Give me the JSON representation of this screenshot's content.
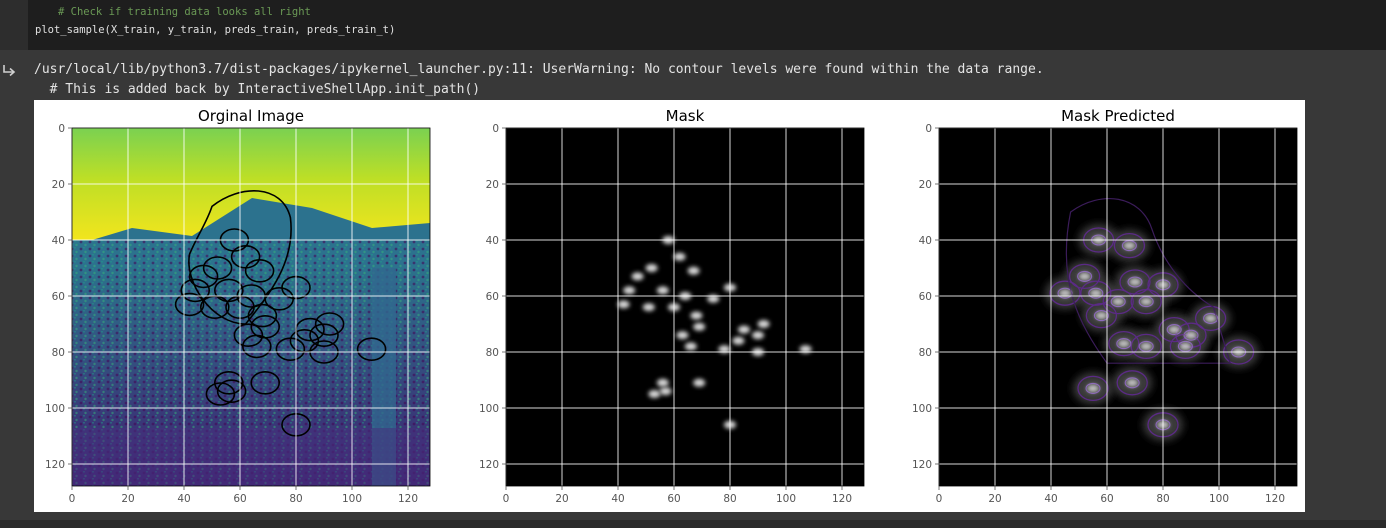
{
  "code_cell": {
    "lines": [
      "# Check if training data looks all right",
      "plot_sample(X_train, y_train, preds_train, preds_train_t)"
    ]
  },
  "output": {
    "icon": "output-arrow-icon",
    "lines": [
      "/usr/local/lib/python3.7/dist-packages/ipykernel_launcher.py:11: UserWarning: No contour levels were found within the data range.",
      "  # This is added back by InteractiveShellApp.init_path()"
    ]
  },
  "chart_data": [
    {
      "type": "heatmap",
      "title": "Orginal Image",
      "colormap": "viridis",
      "overlay": "black contour lines of the mask",
      "xlim": [
        0,
        127
      ],
      "ylim": [
        127,
        0
      ],
      "xticks": [
        0,
        20,
        40,
        60,
        80,
        100,
        120
      ],
      "yticks": [
        0,
        20,
        40,
        60,
        80,
        100,
        120
      ],
      "grid": true
    },
    {
      "type": "heatmap",
      "title": "Mask",
      "colormap": "gray",
      "xlim": [
        0,
        127
      ],
      "ylim": [
        127,
        0
      ],
      "xticks": [
        0,
        20,
        40,
        60,
        80,
        100,
        120
      ],
      "yticks": [
        0,
        20,
        40,
        60,
        80,
        100,
        120
      ],
      "grid": true,
      "blobs": [
        {
          "x": 58,
          "y": 40
        },
        {
          "x": 62,
          "y": 46
        },
        {
          "x": 52,
          "y": 50
        },
        {
          "x": 47,
          "y": 53
        },
        {
          "x": 67,
          "y": 51
        },
        {
          "x": 44,
          "y": 58
        },
        {
          "x": 56,
          "y": 58
        },
        {
          "x": 64,
          "y": 60
        },
        {
          "x": 74,
          "y": 61
        },
        {
          "x": 80,
          "y": 57
        },
        {
          "x": 42,
          "y": 63
        },
        {
          "x": 51,
          "y": 64
        },
        {
          "x": 60,
          "y": 64
        },
        {
          "x": 68,
          "y": 67
        },
        {
          "x": 69,
          "y": 71
        },
        {
          "x": 85,
          "y": 72
        },
        {
          "x": 92,
          "y": 70
        },
        {
          "x": 90,
          "y": 74
        },
        {
          "x": 63,
          "y": 74
        },
        {
          "x": 83,
          "y": 76
        },
        {
          "x": 66,
          "y": 78
        },
        {
          "x": 78,
          "y": 79
        },
        {
          "x": 90,
          "y": 80
        },
        {
          "x": 107,
          "y": 79
        },
        {
          "x": 56,
          "y": 91
        },
        {
          "x": 53,
          "y": 95
        },
        {
          "x": 57,
          "y": 94
        },
        {
          "x": 69,
          "y": 91
        },
        {
          "x": 80,
          "y": 106
        }
      ]
    },
    {
      "type": "heatmap",
      "title": "Mask Predicted",
      "colormap": "gray",
      "overlay": "purple contour lines",
      "xlim": [
        0,
        127
      ],
      "ylim": [
        127,
        0
      ],
      "xticks": [
        0,
        20,
        40,
        60,
        80,
        100,
        120
      ],
      "yticks": [
        0,
        20,
        40,
        60,
        80,
        100,
        120
      ],
      "grid": true,
      "blobs": [
        {
          "x": 57,
          "y": 40
        },
        {
          "x": 68,
          "y": 42
        },
        {
          "x": 52,
          "y": 53
        },
        {
          "x": 70,
          "y": 55
        },
        {
          "x": 80,
          "y": 56
        },
        {
          "x": 45,
          "y": 59
        },
        {
          "x": 56,
          "y": 59
        },
        {
          "x": 64,
          "y": 62
        },
        {
          "x": 74,
          "y": 62
        },
        {
          "x": 58,
          "y": 67
        },
        {
          "x": 84,
          "y": 72
        },
        {
          "x": 90,
          "y": 74
        },
        {
          "x": 97,
          "y": 68
        },
        {
          "x": 66,
          "y": 77
        },
        {
          "x": 74,
          "y": 78
        },
        {
          "x": 88,
          "y": 78
        },
        {
          "x": 107,
          "y": 80
        },
        {
          "x": 55,
          "y": 93
        },
        {
          "x": 69,
          "y": 91
        },
        {
          "x": 80,
          "y": 106
        }
      ]
    }
  ]
}
